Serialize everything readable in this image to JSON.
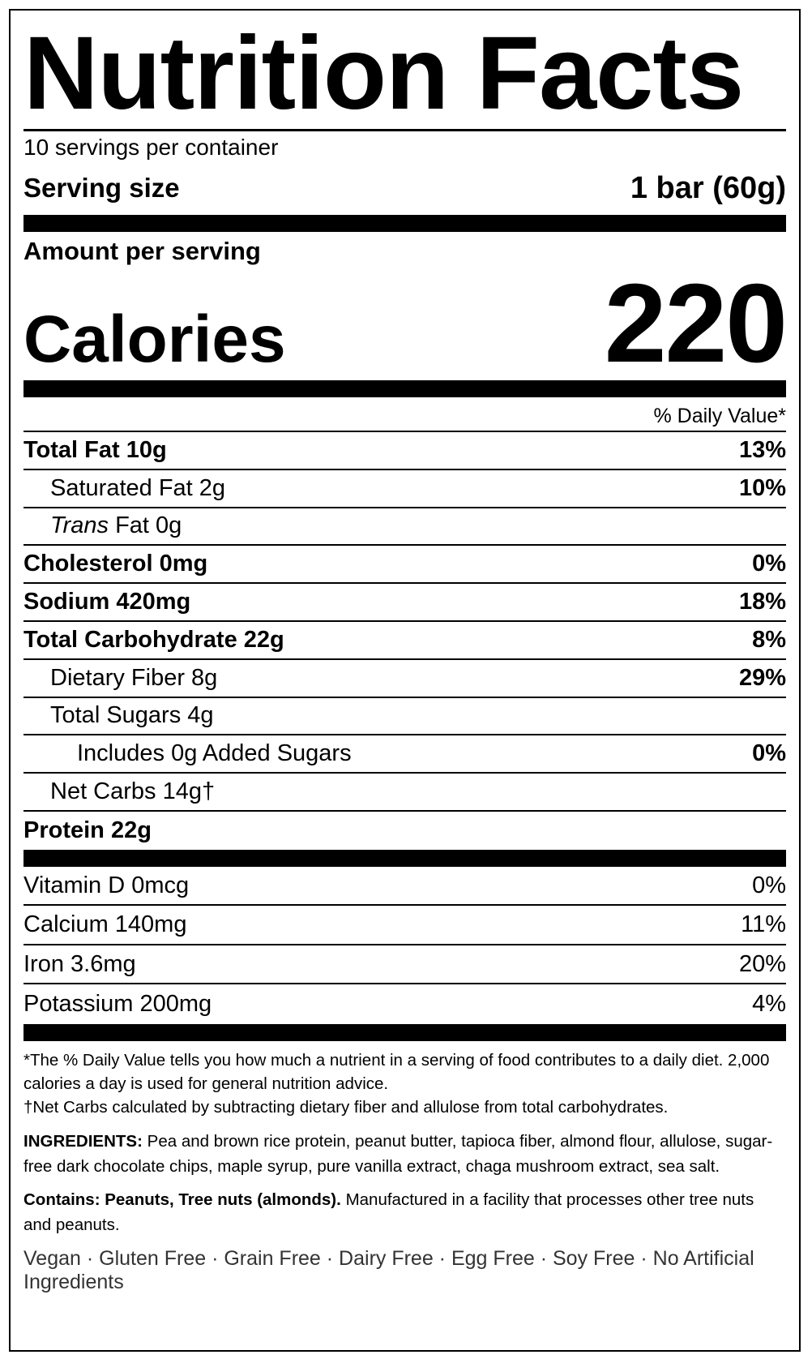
{
  "title": "Nutrition Facts",
  "servings": "10 servings per container",
  "serving_size": {
    "label": "Serving size",
    "value": "1 bar (60g)"
  },
  "amount_per_serving": "Amount per serving",
  "calories": {
    "label": "Calories",
    "value": "220"
  },
  "dv_header": "% Daily Value*",
  "nutrients": [
    {
      "label": "Total Fat 10g",
      "dv": "13%"
    },
    {
      "label": "Saturated Fat 2g",
      "dv": "10%"
    },
    {
      "label_italic": "Trans",
      "label": "Fat 0g"
    },
    {
      "label": "Cholesterol 0mg",
      "dv": "0%"
    },
    {
      "label": "Sodium 420mg",
      "dv": "18%"
    },
    {
      "label": "Total Carbohydrate 22g",
      "dv": "8%"
    },
    {
      "label": "Dietary Fiber 8g",
      "dv": "29%"
    },
    {
      "label": "Total Sugars 4g"
    },
    {
      "label": "Includes 0g Added Sugars",
      "dv": "0%"
    },
    {
      "label": "Net Carbs 14g†"
    },
    {
      "label": "Protein 22g"
    }
  ],
  "vitamins": [
    {
      "label": "Vitamin D 0mcg",
      "dv": "0%"
    },
    {
      "label": "Calcium 140mg",
      "dv": "11%"
    },
    {
      "label": "Iron 3.6mg",
      "dv": "20%"
    },
    {
      "label": "Potassium 200mg",
      "dv": "4%"
    }
  ],
  "footnotes": [
    "*The % Daily Value tells you how much a nutrient in a serving of food contributes to a daily diet. 2,000 calories a day is used for general nutrition advice.",
    "†Net Carbs calculated by subtracting dietary fiber and allulose from total carbohydrates."
  ],
  "ingredients": {
    "label": "INGREDIENTS:",
    "text": "Pea and brown rice protein, peanut butter, tapioca fiber, almond flour, allulose, sugar-free dark chocolate chips, maple syrup, pure vanilla extract, chaga mushroom extract, sea salt."
  },
  "contains": {
    "label": "Contains: Peanuts, Tree nuts (almonds).",
    "text": "Manufactured in a facility that processes other tree nuts and peanuts."
  },
  "claims": "Vegan · Gluten Free · Grain Free · Dairy Free · Egg Free · Soy Free · No Artificial Ingredients"
}
